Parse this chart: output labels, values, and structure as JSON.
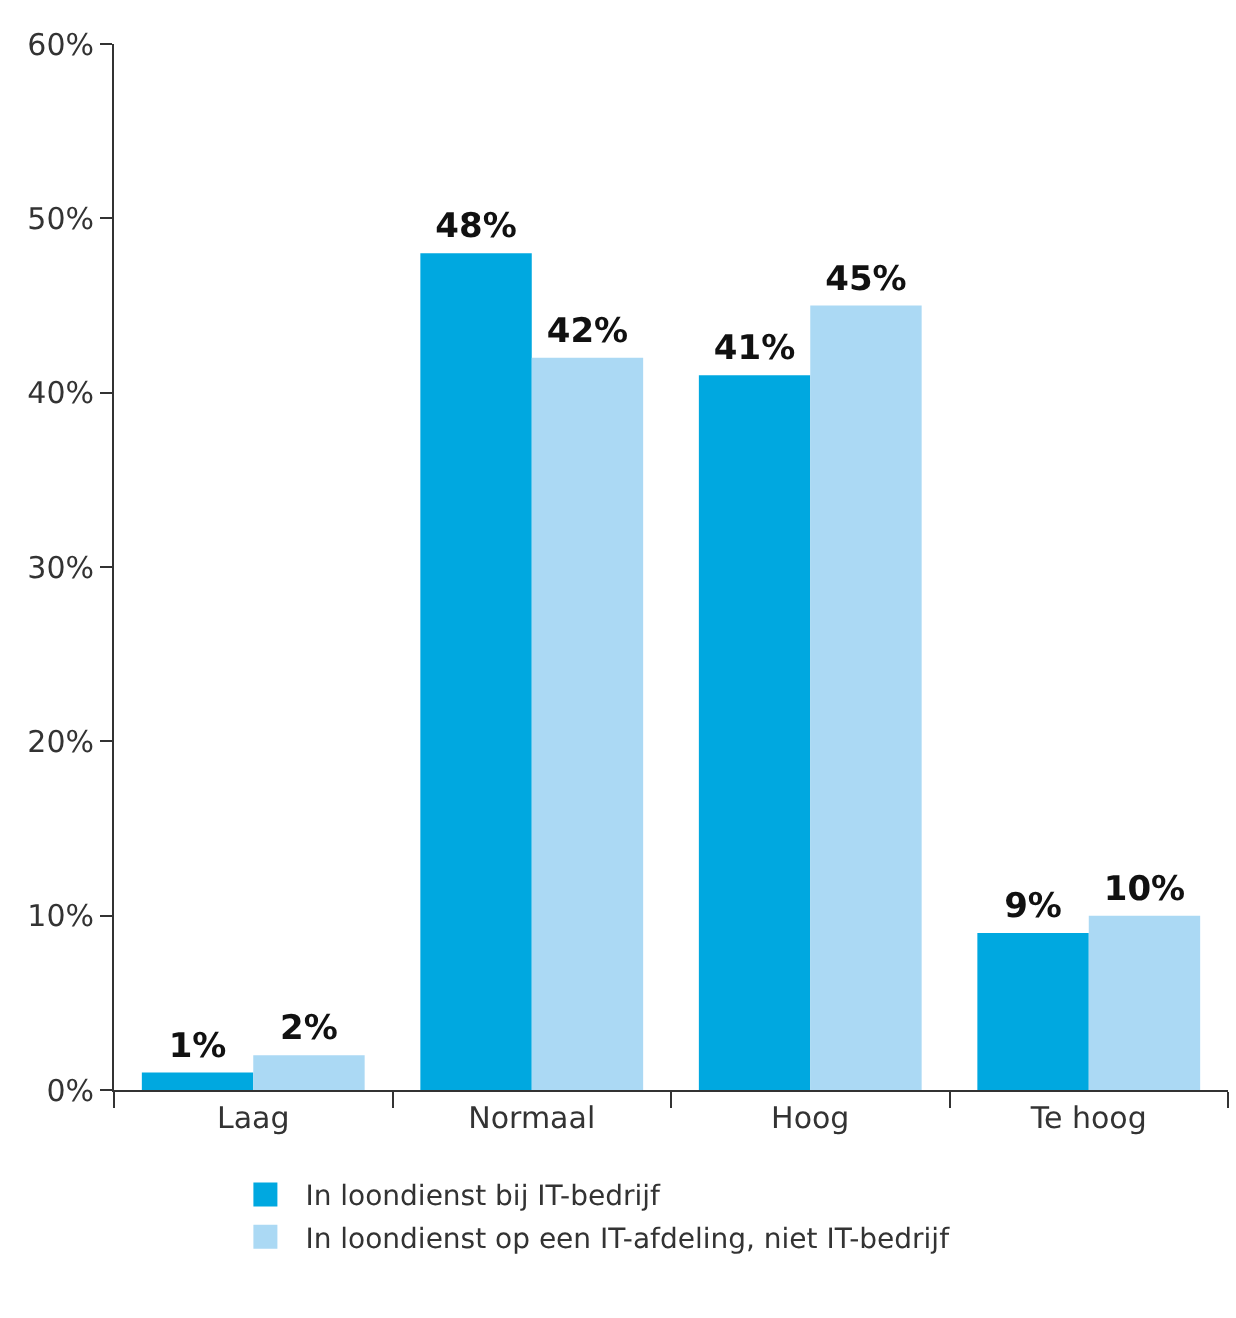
{
  "chart_data": {
    "type": "bar",
    "categories": [
      "Laag",
      "Normaal",
      "Hoog",
      "Te hoog"
    ],
    "series": [
      {
        "name": "In loondienst bij IT-bedrijf",
        "color": "#00a8e0",
        "values": [
          1,
          48,
          41,
          9
        ],
        "value_labels": [
          "1%",
          "48%",
          "41%",
          "9%"
        ]
      },
      {
        "name": "In loondienst op een IT-afdeling, niet IT-bedrijf",
        "color": "#abd9f4",
        "values": [
          2,
          42,
          45,
          10
        ],
        "value_labels": [
          "2%",
          "42%",
          "45%",
          "10%"
        ]
      }
    ],
    "ylim": [
      0,
      60
    ],
    "yticks": [
      {
        "value": 0,
        "label": "0%"
      },
      {
        "value": 10,
        "label": "10%"
      },
      {
        "value": 20,
        "label": "20%"
      },
      {
        "value": 30,
        "label": "30%"
      },
      {
        "value": 40,
        "label": "40%"
      },
      {
        "value": 50,
        "label": "50%"
      },
      {
        "value": 60,
        "label": "60%"
      }
    ],
    "grid": false,
    "legend": "bottom"
  }
}
